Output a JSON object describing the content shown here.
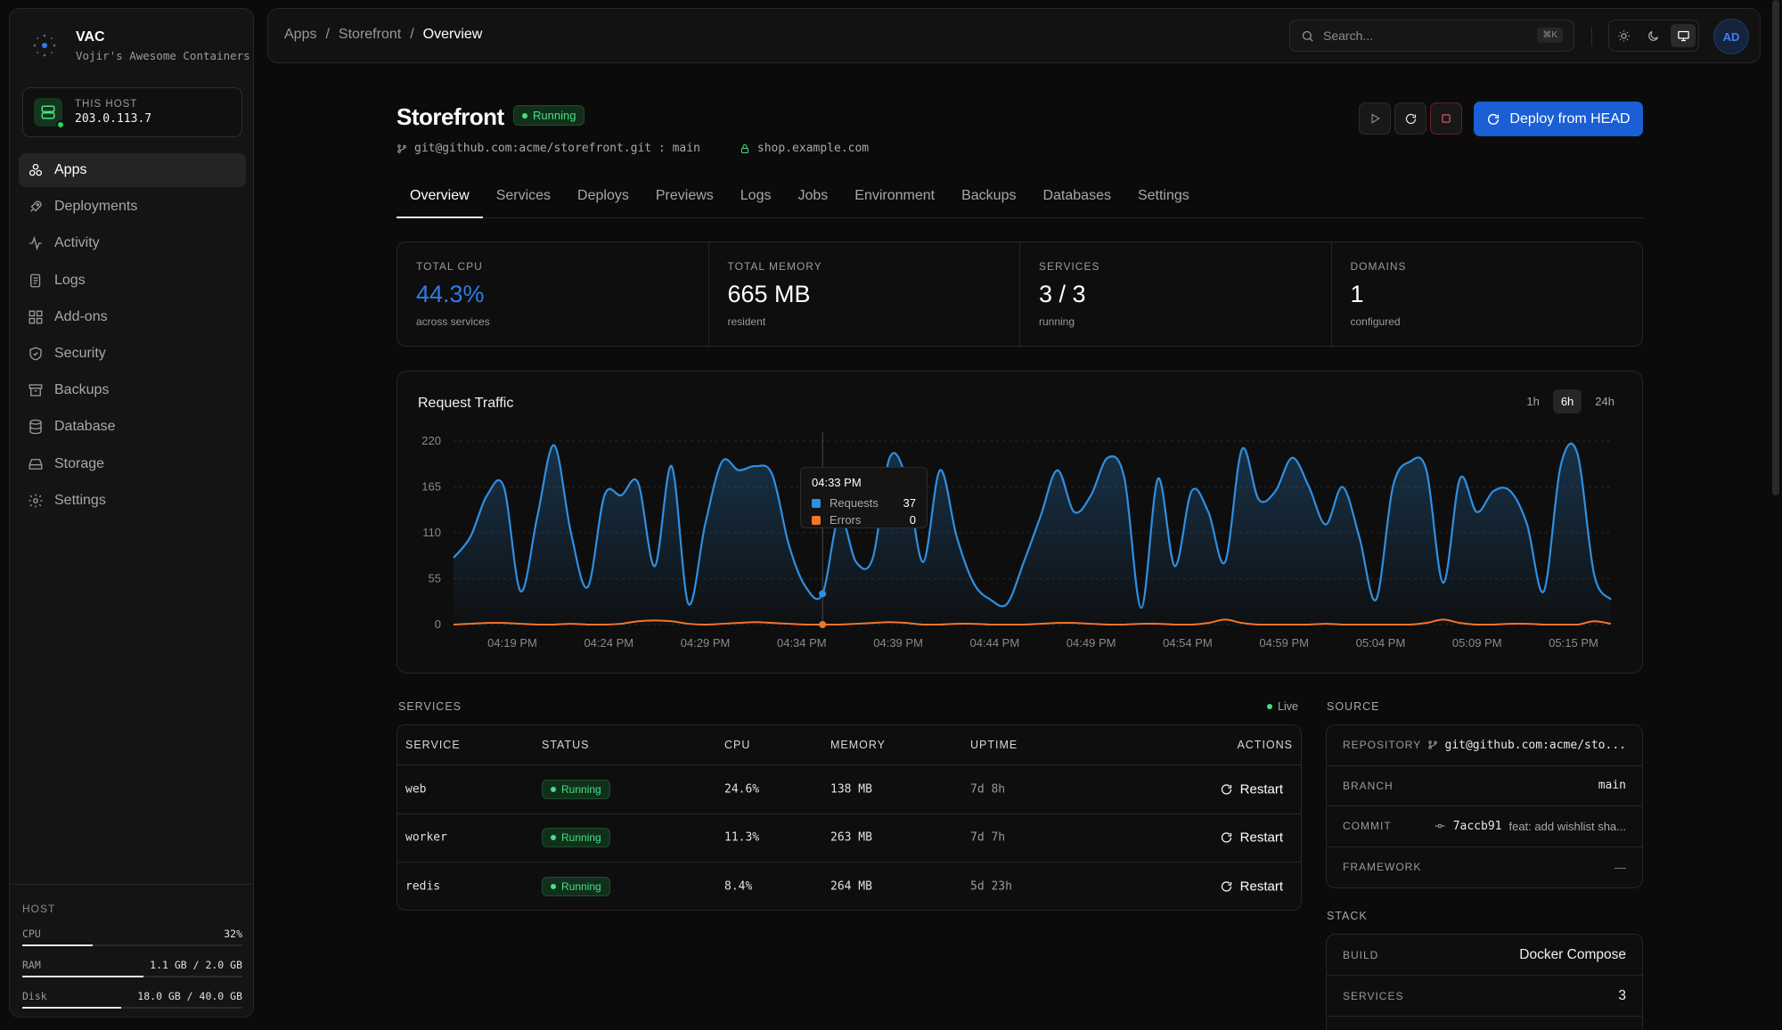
{
  "brand": {
    "title": "VAC",
    "subtitle": "Vojir's Awesome Containers"
  },
  "host_card": {
    "label": "THIS HOST",
    "ip": "203.0.113.7"
  },
  "nav": [
    {
      "label": "Apps",
      "icon": "apps-icon",
      "active": true
    },
    {
      "label": "Deployments",
      "icon": "rocket-icon"
    },
    {
      "label": "Activity",
      "icon": "activity-icon"
    },
    {
      "label": "Logs",
      "icon": "logs-icon"
    },
    {
      "label": "Add-ons",
      "icon": "addons-icon"
    },
    {
      "label": "Security",
      "icon": "shield-icon"
    },
    {
      "label": "Backups",
      "icon": "archive-icon"
    },
    {
      "label": "Database",
      "icon": "database-icon"
    },
    {
      "label": "Storage",
      "icon": "storage-icon"
    },
    {
      "label": "Settings",
      "icon": "gear-icon"
    }
  ],
  "host_stats": {
    "title": "HOST",
    "cpu": {
      "label": "CPU",
      "value": "32%",
      "fraction": 0.32
    },
    "ram": {
      "label": "RAM",
      "value": "1.1 GB / 2.0 GB",
      "fraction": 0.55
    },
    "disk": {
      "label": "Disk",
      "value": "18.0 GB / 40.0 GB",
      "fraction": 0.45
    }
  },
  "breadcrumb": {
    "root": "Apps",
    "app": "Storefront",
    "current": "Overview",
    "separator": "/"
  },
  "search": {
    "placeholder": "Search...",
    "shortcut": "⌘K"
  },
  "user": {
    "initials": "AD"
  },
  "app": {
    "name": "Storefront",
    "status": "Running",
    "repo": "git@github.com:acme/storefront.git : main",
    "domain": "shop.example.com",
    "deploy_label": "Deploy from HEAD"
  },
  "tabs": [
    "Overview",
    "Services",
    "Deploys",
    "Previews",
    "Logs",
    "Jobs",
    "Environment",
    "Backups",
    "Databases",
    "Settings"
  ],
  "stats": [
    {
      "label": "TOTAL CPU",
      "value": "44.3%",
      "sub": "across services",
      "accent": true
    },
    {
      "label": "TOTAL MEMORY",
      "value": "665 MB",
      "sub": "resident"
    },
    {
      "label": "SERVICES",
      "value": "3 / 3",
      "sub": "running"
    },
    {
      "label": "DOMAINS",
      "value": "1",
      "sub": "configured"
    }
  ],
  "traffic": {
    "title": "Request Traffic",
    "ranges": [
      "1h",
      "6h",
      "24h"
    ],
    "active_range": "6h",
    "tooltip": {
      "time": "04:33 PM",
      "requests_label": "Requests",
      "requests": "37",
      "errors_label": "Errors",
      "errors": "0"
    }
  },
  "chart_data": {
    "type": "area",
    "title": "Request Traffic",
    "x_ticks": [
      "04:19 PM",
      "04:24 PM",
      "04:29 PM",
      "04:34 PM",
      "04:39 PM",
      "04:44 PM",
      "04:49 PM",
      "04:54 PM",
      "04:59 PM",
      "05:04 PM",
      "05:09 PM",
      "05:15 PM"
    ],
    "y_ticks": [
      0,
      55,
      110,
      165,
      220
    ],
    "ylim": [
      0,
      220
    ],
    "grid": true,
    "series": [
      {
        "name": "Requests",
        "color": "#2f8fe0",
        "values": [
          80,
          105,
          155,
          165,
          40,
          130,
          215,
          110,
          45,
          155,
          155,
          170,
          70,
          190,
          25,
          120,
          195,
          185,
          190,
          180,
          95,
          45,
          37,
          130,
          75,
          80,
          200,
          175,
          75,
          185,
          105,
          50,
          30,
          25,
          75,
          130,
          185,
          135,
          155,
          200,
          175,
          20,
          175,
          70,
          160,
          135,
          75,
          210,
          150,
          160,
          200,
          165,
          120,
          165,
          105,
          30,
          165,
          195,
          185,
          50,
          175,
          135,
          160,
          160,
          120,
          40,
          190,
          205,
          60,
          30
        ]
      },
      {
        "name": "Errors",
        "color": "#f0762a",
        "values": [
          0,
          1,
          2,
          2,
          1,
          0,
          0,
          1,
          0,
          0,
          1,
          4,
          5,
          4,
          1,
          0,
          1,
          2,
          3,
          2,
          1,
          0,
          0,
          0,
          1,
          2,
          3,
          2,
          0,
          0,
          1,
          1,
          0,
          0,
          0,
          1,
          2,
          2,
          1,
          0,
          0,
          1,
          1,
          0,
          0,
          2,
          6,
          2,
          0,
          0,
          0,
          0,
          1,
          0,
          0,
          0,
          0,
          0,
          2,
          6,
          2,
          0,
          0,
          1,
          1,
          0,
          0,
          0,
          4,
          1
        ]
      }
    ]
  },
  "services": {
    "label": "SERVICES",
    "live": "Live",
    "columns": [
      "SERVICE",
      "STATUS",
      "CPU",
      "MEMORY",
      "UPTIME",
      "ACTIONS"
    ],
    "action_label": "Restart",
    "rows": [
      {
        "name": "web",
        "status": "Running",
        "cpu": "24.6%",
        "memory": "138 MB",
        "uptime": "7d 8h"
      },
      {
        "name": "worker",
        "status": "Running",
        "cpu": "11.3%",
        "memory": "263 MB",
        "uptime": "7d 7h"
      },
      {
        "name": "redis",
        "status": "Running",
        "cpu": "8.4%",
        "memory": "264 MB",
        "uptime": "5d 23h"
      }
    ]
  },
  "source": {
    "label": "SOURCE",
    "repository_label": "REPOSITORY",
    "repository": "git@github.com:acme/sto...",
    "branch_label": "BRANCH",
    "branch": "main",
    "commit_label": "COMMIT",
    "commit_hash": "7accb91",
    "commit_msg": "feat: add wishlist sha...",
    "framework_label": "FRAMEWORK",
    "framework": "—"
  },
  "stack": {
    "label": "STACK",
    "build_label": "BUILD",
    "build": "Docker Compose",
    "services_label": "SERVICES",
    "services": "3"
  }
}
